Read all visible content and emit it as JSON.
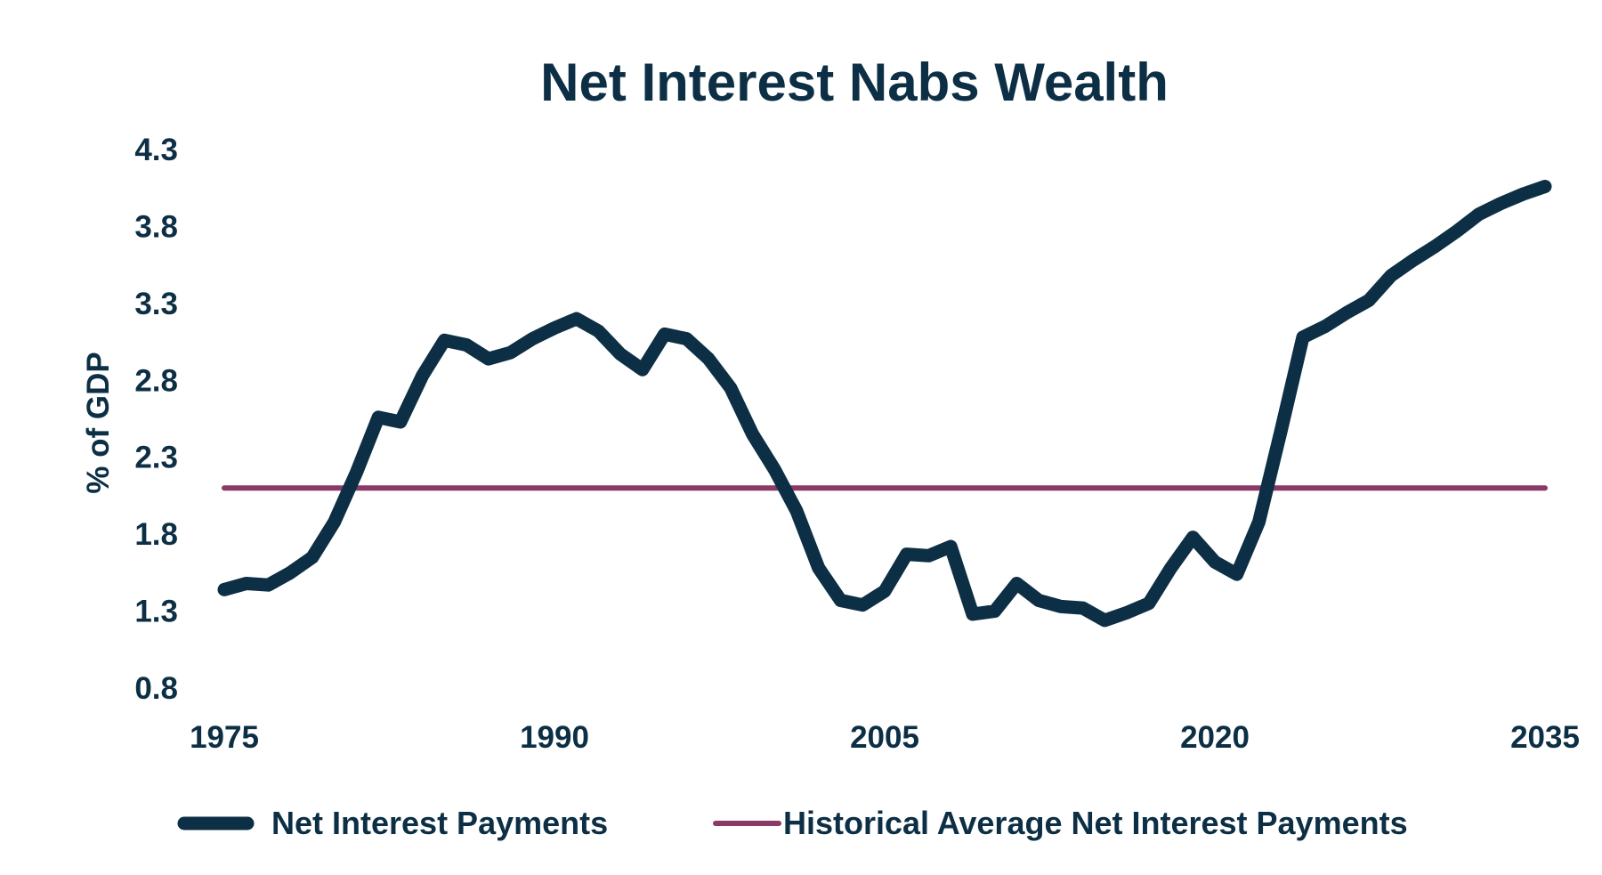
{
  "colors": {
    "text": "#0d2f45",
    "net_interest_line": "#0d2f45",
    "average_line": "#8b3a68",
    "background": "#ffffff"
  },
  "chart_data": {
    "type": "line",
    "title": "Net Interest Nabs Wealth",
    "xlabel": "",
    "ylabel": "% of GDP",
    "xlim": [
      1975,
      2035
    ],
    "ylim": [
      0.8,
      4.3
    ],
    "x_ticks": [
      1975,
      1990,
      2005,
      2020,
      2035
    ],
    "y_ticks": [
      "0.8",
      "1.3",
      "1.8",
      "2.3",
      "2.8",
      "3.3",
      "3.8",
      "4.3"
    ],
    "grid": false,
    "legend_position": "bottom",
    "series": [
      {
        "name": "Net Interest Payments",
        "color": "#0d2f45",
        "style": "solid-thick",
        "x": [
          1975,
          1976,
          1977,
          1978,
          1979,
          1980,
          1981,
          1982,
          1983,
          1984,
          1985,
          1986,
          1987,
          1988,
          1989,
          1990,
          1991,
          1992,
          1993,
          1994,
          1995,
          1996,
          1997,
          1998,
          1999,
          2000,
          2001,
          2002,
          2003,
          2004,
          2005,
          2006,
          2007,
          2008,
          2009,
          2010,
          2011,
          2012,
          2013,
          2014,
          2015,
          2016,
          2017,
          2018,
          2019,
          2020,
          2021,
          2022,
          2023,
          2024,
          2025,
          2026,
          2027,
          2028,
          2029,
          2030,
          2031,
          2032,
          2033,
          2034,
          2035
        ],
        "y": [
          1.44,
          1.48,
          1.47,
          1.55,
          1.65,
          1.88,
          2.2,
          2.56,
          2.53,
          2.83,
          3.06,
          3.03,
          2.94,
          2.98,
          3.07,
          3.14,
          3.2,
          3.12,
          2.97,
          2.87,
          3.1,
          3.07,
          2.94,
          2.75,
          2.45,
          2.22,
          1.95,
          1.58,
          1.37,
          1.34,
          1.43,
          1.67,
          1.66,
          1.72,
          1.28,
          1.3,
          1.48,
          1.37,
          1.33,
          1.32,
          1.24,
          1.29,
          1.35,
          1.58,
          1.78,
          1.62,
          1.54,
          1.88,
          2.47,
          3.08,
          3.15,
          3.24,
          3.32,
          3.48,
          3.58,
          3.67,
          3.77,
          3.88,
          3.95,
          4.01,
          4.06
        ]
      },
      {
        "name": "Historical Average Net Interest Payments",
        "color": "#8b3a68",
        "style": "solid-thin",
        "x": [
          1975,
          2035
        ],
        "y": [
          2.1,
          2.1
        ]
      }
    ]
  }
}
